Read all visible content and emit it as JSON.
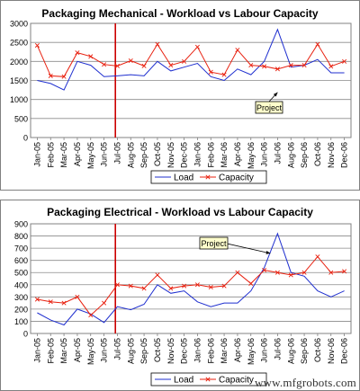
{
  "chart_data": [
    {
      "type": "line",
      "title": "Packaging Mechanical - Workload vs Labour Capacity",
      "categories": [
        "Jan-05",
        "Feb-05",
        "Mar-05",
        "Apr-05",
        "May-05",
        "Jun-05",
        "Jul-05",
        "Aug-05",
        "Sep-05",
        "Oct-05",
        "Nov-05",
        "Dec-05",
        "Jan-06",
        "Feb-06",
        "Mar-06",
        "Apr-06",
        "May-06",
        "Jun-06",
        "Jul-06",
        "Aug-06",
        "Sep-06",
        "Oct-06",
        "Nov-06",
        "Dec-06"
      ],
      "ylim": [
        0,
        3000
      ],
      "yticks": [
        0,
        500,
        1000,
        1500,
        2000,
        2500,
        3000
      ],
      "grid": true,
      "legend_position": "bottom",
      "series": [
        {
          "name": "Load",
          "color": "#1f2fcf",
          "marker": "none",
          "values": [
            1500,
            1420,
            1250,
            2000,
            1900,
            1600,
            1620,
            1650,
            1620,
            2000,
            1750,
            1850,
            1950,
            1600,
            1500,
            1800,
            1650,
            2000,
            2840,
            1850,
            1900,
            2050,
            1700,
            1700
          ]
        },
        {
          "name": "Capacity",
          "color": "#e8200f",
          "marker": "x",
          "values": [
            2420,
            1620,
            1600,
            2230,
            2130,
            1920,
            1880,
            2020,
            1880,
            2450,
            1900,
            2000,
            2380,
            1720,
            1650,
            2300,
            1900,
            1870,
            1800,
            1900,
            1900,
            2450,
            1870,
            2000
          ]
        }
      ],
      "annotations": [
        {
          "text": "Project",
          "points_to": "Jul-06"
        }
      ],
      "marker_line": {
        "at": "Jul-05",
        "color": "#cc0000"
      }
    },
    {
      "type": "line",
      "title": "Packaging Electrical - Workload vs Labour Capacity",
      "categories": [
        "Jan-05",
        "Feb-05",
        "Mar-05",
        "Apr-05",
        "May-05",
        "Jun-05",
        "Jul-05",
        "Aug-05",
        "Sep-05",
        "Oct-05",
        "Nov-05",
        "Dec-05",
        "Jan-06",
        "Feb-06",
        "Mar-06",
        "Apr-06",
        "May-06",
        "Jun-06",
        "Jul-06",
        "Aug-06",
        "Sep-06",
        "Oct-06",
        "Nov-06",
        "Dec-06"
      ],
      "ylim": [
        0,
        900
      ],
      "yticks": [
        0,
        100,
        200,
        300,
        400,
        500,
        600,
        700,
        800,
        900
      ],
      "grid": true,
      "legend_position": "bottom",
      "series": [
        {
          "name": "Load",
          "color": "#1f2fcf",
          "marker": "none",
          "values": [
            170,
            110,
            70,
            200,
            160,
            90,
            220,
            195,
            240,
            400,
            330,
            350,
            260,
            220,
            250,
            250,
            350,
            540,
            820,
            500,
            470,
            350,
            300,
            350
          ]
        },
        {
          "name": "Capacity",
          "color": "#e8200f",
          "marker": "x",
          "values": [
            280,
            260,
            250,
            300,
            150,
            250,
            400,
            390,
            370,
            480,
            370,
            390,
            400,
            380,
            390,
            500,
            410,
            520,
            500,
            480,
            500,
            630,
            500,
            510
          ]
        }
      ],
      "annotations": [
        {
          "text": "Project",
          "points_to": "Jul-06"
        }
      ],
      "marker_line": {
        "at": "Jul-05",
        "color": "#cc0000"
      }
    }
  ],
  "watermark": "www.mfgrobots.com"
}
